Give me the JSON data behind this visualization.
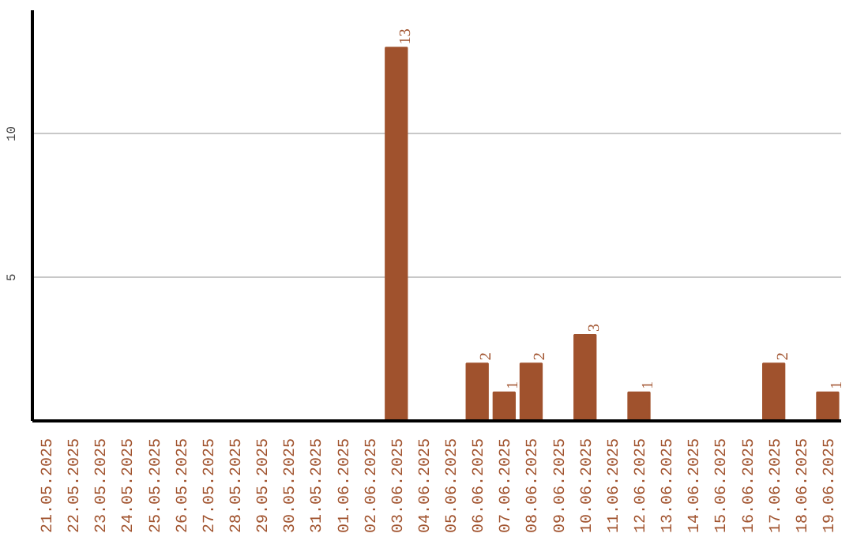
{
  "chart_data": {
    "type": "bar",
    "categories": [
      "21.05.2025",
      "22.05.2025",
      "23.05.2025",
      "24.05.2025",
      "25.05.2025",
      "26.05.2025",
      "27.05.2025",
      "28.05.2025",
      "29.05.2025",
      "30.05.2025",
      "31.05.2025",
      "01.06.2025",
      "02.06.2025",
      "03.06.2025",
      "04.06.2025",
      "05.06.2025",
      "06.06.2025",
      "07.06.2025",
      "08.06.2025",
      "09.06.2025",
      "10.06.2025",
      "11.06.2025",
      "12.06.2025",
      "13.06.2025",
      "14.06.2025",
      "15.06.2025",
      "16.06.2025",
      "17.06.2025",
      "18.06.2025",
      "19.06.2025"
    ],
    "values": [
      0,
      0,
      0,
      0,
      0,
      0,
      0,
      0,
      0,
      0,
      0,
      0,
      0,
      13,
      0,
      0,
      2,
      1,
      2,
      0,
      3,
      0,
      1,
      0,
      0,
      0,
      0,
      2,
      0,
      1
    ],
    "value_labels": [
      null,
      null,
      null,
      null,
      null,
      null,
      null,
      null,
      null,
      null,
      null,
      null,
      null,
      "13",
      null,
      null,
      "2",
      "1",
      "2",
      null,
      "3",
      null,
      "1",
      null,
      null,
      null,
      null,
      "2",
      null,
      "1"
    ],
    "color": "#a0522d",
    "ylim": [
      0,
      14.3
    ],
    "yticks": [
      5,
      10
    ],
    "grid": "y"
  }
}
